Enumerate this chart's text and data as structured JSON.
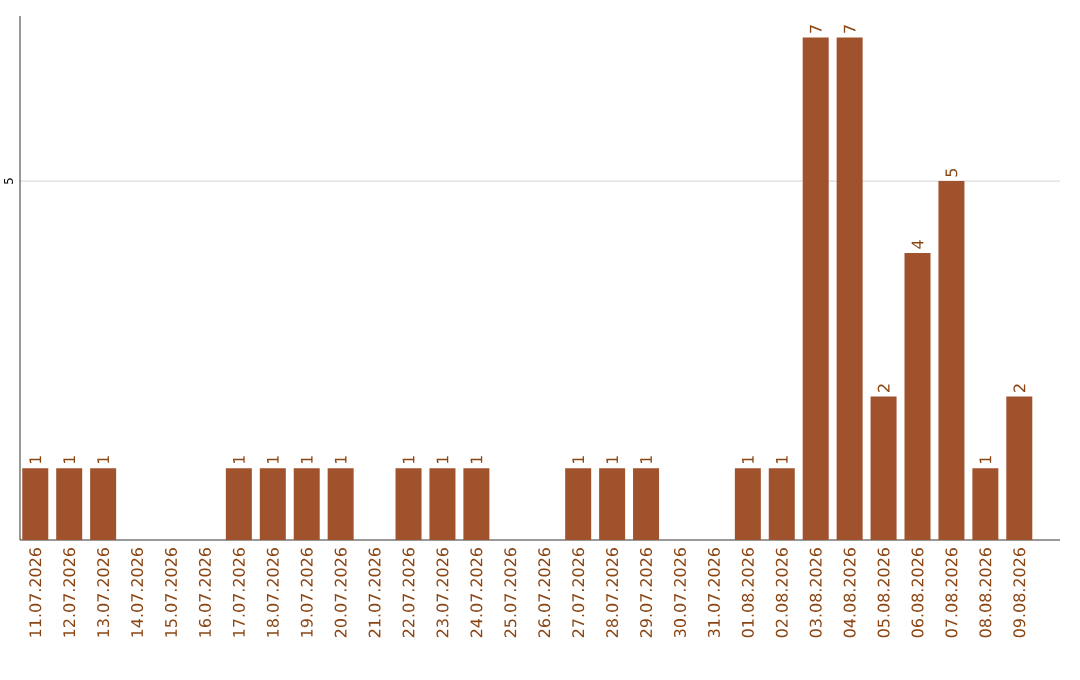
{
  "chart_data": {
    "type": "bar",
    "categories": [
      "11.07.2026",
      "12.07.2026",
      "13.07.2026",
      "14.07.2026",
      "15.07.2026",
      "16.07.2026",
      "17.07.2026",
      "18.07.2026",
      "19.07.2026",
      "20.07.2026",
      "21.07.2026",
      "22.07.2026",
      "23.07.2026",
      "24.07.2026",
      "25.07.2026",
      "26.07.2026",
      "27.07.2026",
      "28.07.2026",
      "29.07.2026",
      "30.07.2026",
      "31.07.2026",
      "01.08.2026",
      "02.08.2026",
      "03.08.2026",
      "04.08.2026",
      "05.08.2026",
      "06.08.2026",
      "07.08.2026",
      "08.08.2026",
      "09.08.2026"
    ],
    "values": [
      1,
      1,
      1,
      0,
      0,
      0,
      1,
      1,
      1,
      1,
      0,
      1,
      1,
      1,
      0,
      0,
      1,
      1,
      1,
      0,
      0,
      1,
      1,
      7,
      7,
      2,
      4,
      5,
      1,
      2
    ],
    "value_labels": [
      "1",
      "1",
      "1",
      null,
      null,
      null,
      "1",
      "1",
      "1",
      "1",
      null,
      "1",
      "1",
      "1",
      null,
      null,
      "1",
      "1",
      "1",
      null,
      null,
      "1",
      "1",
      "7",
      "7",
      "2",
      "4",
      "5",
      "1",
      "2"
    ],
    "color": "#a0522d",
    "ylim": [
      0,
      7.3
    ],
    "yticks": [
      5
    ],
    "grid": "y"
  }
}
